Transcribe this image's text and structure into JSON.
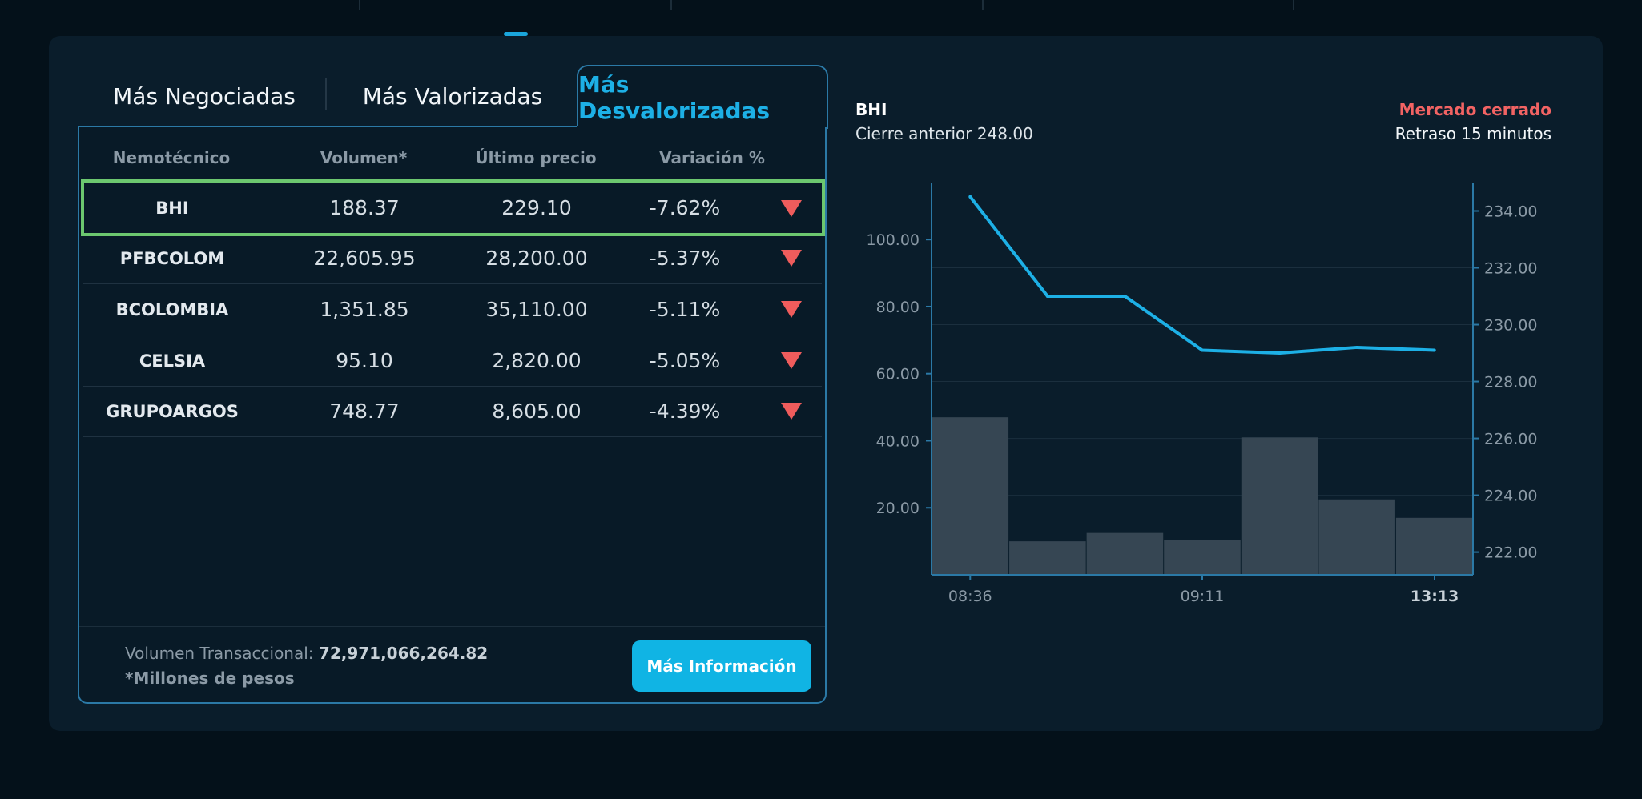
{
  "tabs": [
    {
      "label": "Más Negociadas"
    },
    {
      "label": "Más Valorizadas"
    },
    {
      "label": "Más Desvalorizadas"
    }
  ],
  "table": {
    "headers": [
      "Nemotécnico",
      "Volumen*",
      "Último precio",
      "Variación %"
    ],
    "rows": [
      {
        "symbol": "BHI",
        "volume": "188.37",
        "price": "229.10",
        "change": "-7.62%"
      },
      {
        "symbol": "PFBCOLOM",
        "volume": "22,605.95",
        "price": "28,200.00",
        "change": "-5.37%"
      },
      {
        "symbol": "BCOLOMBIA",
        "volume": "1,351.85",
        "price": "35,110.00",
        "change": "-5.11%"
      },
      {
        "symbol": "CELSIA",
        "volume": "95.10",
        "price": "2,820.00",
        "change": "-5.05%"
      },
      {
        "symbol": "GRUPOARGOS",
        "volume": "748.77",
        "price": "8,605.00",
        "change": "-4.39%"
      }
    ]
  },
  "footer": {
    "volume_label": "Volumen Transaccional:",
    "volume_value": "72,971,066,264.82",
    "note": "*Millones de pesos",
    "button_label": "Más Información"
  },
  "detail": {
    "symbol": "BHI",
    "previous_close": "Cierre anterior 248.00",
    "market_status": "Mercado cerrado",
    "delay": "Retraso 15 minutos"
  },
  "colors": {
    "accent": "#1db0e6",
    "negative": "#ef5c5c",
    "selected_border": "#6cc76f",
    "volume_bar": "#364653"
  },
  "chart_data": {
    "type": "line",
    "title": "BHI",
    "x_ticks": [
      "08:36",
      "09:11",
      "13:13"
    ],
    "y_left": {
      "ticks": [
        "20.00",
        "40.00",
        "60.00",
        "80.00",
        "100.00"
      ],
      "range": [
        0,
        117
      ]
    },
    "y_right": {
      "ticks": [
        "222.00",
        "224.00",
        "226.00",
        "228.00",
        "230.00",
        "232.00",
        "234.00"
      ],
      "range": [
        221.2,
        235.0
      ]
    },
    "volume_bars": [
      47,
      10,
      12.5,
      10.5,
      41,
      22.5,
      17
    ],
    "price_line": [
      234.5,
      231.0,
      231.0,
      229.1,
      229.0,
      229.2,
      229.1
    ]
  }
}
